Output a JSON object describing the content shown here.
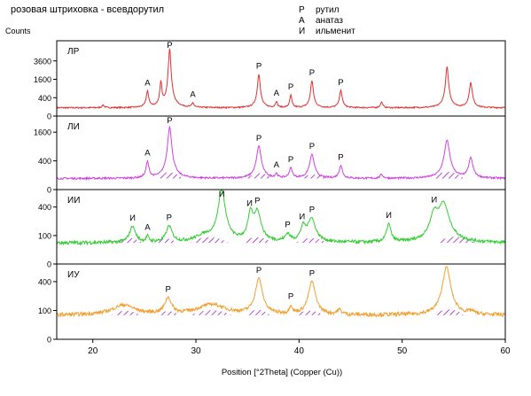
{
  "chart_data": {
    "type": "line",
    "title": "розовая штриховка - всевдорутил",
    "ylabel": "Counts",
    "xlabel": "Position [°2Theta] (Copper (Cu))",
    "xlim": [
      16.5,
      60
    ],
    "x_ticks": [
      "20",
      "30",
      "40",
      "50",
      "60"
    ],
    "x_tick_values": [
      20,
      30,
      40,
      50,
      60
    ],
    "scale": "sqrt",
    "legend": [
      {
        "symbol": "Р",
        "text": "рутил"
      },
      {
        "symbol": "А",
        "text": "анатаз"
      },
      {
        "symbol": "И",
        "text": "ильменит"
      }
    ],
    "legend_position": "top-right",
    "panels": [
      {
        "name": "ЛР",
        "color": "#e03030",
        "ylim": [
          0,
          6400
        ],
        "y_ticks": [
          "0",
          "400",
          "1600",
          "3600"
        ],
        "y_tick_values": [
          0,
          400,
          1600,
          3600
        ],
        "baseline": 80,
        "peaks": [
          {
            "x": 21.0,
            "h": 60,
            "w": 0.12
          },
          {
            "x": 25.3,
            "h": 650,
            "w": 0.12
          },
          {
            "x": 26.6,
            "h": 1300,
            "w": 0.1
          },
          {
            "x": 27.45,
            "h": 5300,
            "w": 0.13
          },
          {
            "x": 29.7,
            "h": 120,
            "w": 0.1
          },
          {
            "x": 36.1,
            "h": 2000,
            "w": 0.13
          },
          {
            "x": 37.8,
            "h": 170,
            "w": 0.1
          },
          {
            "x": 39.2,
            "h": 450,
            "w": 0.1
          },
          {
            "x": 41.25,
            "h": 1400,
            "w": 0.13
          },
          {
            "x": 44.05,
            "h": 700,
            "w": 0.13
          },
          {
            "x": 48.0,
            "h": 150,
            "w": 0.12
          },
          {
            "x": 54.35,
            "h": 2800,
            "w": 0.14
          },
          {
            "x": 56.65,
            "h": 1250,
            "w": 0.14
          }
        ],
        "markers": [
          {
            "label": "А",
            "x": 25.3
          },
          {
            "label": "Р",
            "x": 27.45
          },
          {
            "label": "А",
            "x": 29.7
          },
          {
            "label": "Р",
            "x": 36.1
          },
          {
            "label": "А",
            "x": 37.8
          },
          {
            "label": "Р",
            "x": 39.2
          },
          {
            "label": "Р",
            "x": 41.25
          },
          {
            "label": "Р",
            "x": 44.05
          }
        ],
        "hatches": []
      },
      {
        "name": "ЛИ",
        "color": "#d040e0",
        "ylim": [
          0,
          2500
        ],
        "y_ticks": [
          "0",
          "400",
          "1600"
        ],
        "y_tick_values": [
          0,
          400,
          1600
        ],
        "baseline": 60,
        "peaks": [
          {
            "x": 25.3,
            "h": 320,
            "w": 0.14
          },
          {
            "x": 27.45,
            "h": 1850,
            "w": 0.2
          },
          {
            "x": 36.1,
            "h": 860,
            "w": 0.22
          },
          {
            "x": 37.8,
            "h": 60,
            "w": 0.12
          },
          {
            "x": 39.2,
            "h": 170,
            "w": 0.15
          },
          {
            "x": 41.25,
            "h": 540,
            "w": 0.22
          },
          {
            "x": 44.05,
            "h": 220,
            "w": 0.16
          },
          {
            "x": 48.0,
            "h": 50,
            "w": 0.15
          },
          {
            "x": 54.35,
            "h": 1120,
            "w": 0.26
          },
          {
            "x": 56.65,
            "h": 430,
            "w": 0.2
          }
        ],
        "markers": [
          {
            "label": "А",
            "x": 25.3
          },
          {
            "label": "Р",
            "x": 27.45
          },
          {
            "label": "Р",
            "x": 36.1
          },
          {
            "label": "А",
            "x": 37.8
          },
          {
            "label": "Р",
            "x": 39.2
          },
          {
            "label": "Р",
            "x": 41.25
          },
          {
            "label": "Р",
            "x": 44.05
          }
        ],
        "hatches": [
          {
            "x": 27.4,
            "w": 2.6,
            "h": 150
          },
          {
            "x": 36.2,
            "w": 2.6,
            "h": 120
          },
          {
            "x": 41.4,
            "w": 2.8,
            "h": 80
          },
          {
            "x": 54.4,
            "w": 3.2,
            "h": 160
          },
          {
            "x": 21.0,
            "w": 1.6,
            "h": 40
          }
        ]
      },
      {
        "name": "ИИ",
        "color": "#33cc33",
        "ylim": [
          0,
          650
        ],
        "y_ticks": [
          "0",
          "100",
          "400"
        ],
        "y_tick_values": [
          0,
          100,
          400
        ],
        "baseline": 55,
        "peaks": [
          {
            "x": 23.85,
            "h": 120,
            "w": 0.3
          },
          {
            "x": 25.3,
            "h": 35,
            "w": 0.15
          },
          {
            "x": 27.4,
            "h": 120,
            "w": 0.3
          },
          {
            "x": 32.5,
            "h": 620,
            "w": 0.35
          },
          {
            "x": 35.3,
            "h": 260,
            "w": 0.25
          },
          {
            "x": 35.95,
            "h": 280,
            "w": 0.35
          },
          {
            "x": 38.9,
            "h": 50,
            "w": 0.25
          },
          {
            "x": 40.4,
            "h": 110,
            "w": 0.25
          },
          {
            "x": 41.2,
            "h": 200,
            "w": 0.4
          },
          {
            "x": 48.7,
            "h": 140,
            "w": 0.22
          },
          {
            "x": 53.1,
            "h": 230,
            "w": 0.4
          },
          {
            "x": 54.0,
            "h": 390,
            "w": 0.55
          },
          {
            "x": 30.8,
            "h": 40,
            "w": 0.9
          }
        ],
        "markers": [
          {
            "label": "И",
            "x": 23.85
          },
          {
            "label": "А",
            "x": 25.3
          },
          {
            "label": "Р",
            "x": 27.4
          },
          {
            "label": "И",
            "x": 32.5
          },
          {
            "label": "И",
            "x": 35.2
          },
          {
            "label": "Р",
            "x": 35.95
          },
          {
            "label": "Р",
            "x": 38.9
          },
          {
            "label": "И",
            "x": 40.3
          },
          {
            "label": "Р",
            "x": 41.25
          },
          {
            "label": "И",
            "x": 48.7
          },
          {
            "label": "И",
            "x": 53.1
          }
        ],
        "hatches": [
          {
            "x": 23.6,
            "w": 2.4,
            "h": 45
          },
          {
            "x": 27.0,
            "w": 2.4,
            "h": 40
          },
          {
            "x": 31.3,
            "w": 3.8,
            "h": 55
          },
          {
            "x": 35.9,
            "w": 3.0,
            "h": 55
          },
          {
            "x": 41.2,
            "w": 3.0,
            "h": 45
          },
          {
            "x": 55.2,
            "w": 3.8,
            "h": 60
          }
        ]
      },
      {
        "name": "ИУ",
        "color": "#f0a030",
        "ylim": [
          0,
          650
        ],
        "y_ticks": [
          "0",
          "100",
          "400"
        ],
        "y_tick_values": [
          0,
          100,
          400
        ],
        "baseline": 70,
        "peaks": [
          {
            "x": 23.0,
            "h": 70,
            "w": 1.2
          },
          {
            "x": 27.3,
            "h": 130,
            "w": 0.35
          },
          {
            "x": 31.5,
            "h": 75,
            "w": 1.5
          },
          {
            "x": 36.1,
            "h": 370,
            "w": 0.35
          },
          {
            "x": 39.2,
            "h": 60,
            "w": 0.15
          },
          {
            "x": 41.25,
            "h": 330,
            "w": 0.35
          },
          {
            "x": 43.9,
            "h": 30,
            "w": 0.25
          },
          {
            "x": 54.3,
            "h": 560,
            "w": 0.4
          },
          {
            "x": 56.7,
            "h": 20,
            "w": 0.3
          }
        ],
        "markers": [
          {
            "label": "Р",
            "x": 27.3
          },
          {
            "label": "Р",
            "x": 36.1
          },
          {
            "label": "Р",
            "x": 39.2
          },
          {
            "label": "Р",
            "x": 41.25
          }
        ],
        "hatches": [
          {
            "x": 23.2,
            "w": 2.8,
            "h": 45
          },
          {
            "x": 27.3,
            "w": 2.2,
            "h": 40
          },
          {
            "x": 31.5,
            "w": 4.0,
            "h": 50
          },
          {
            "x": 36.0,
            "w": 2.4,
            "h": 55
          },
          {
            "x": 41.0,
            "w": 2.8,
            "h": 45
          },
          {
            "x": 54.5,
            "w": 3.0,
            "h": 60
          }
        ]
      }
    ]
  }
}
